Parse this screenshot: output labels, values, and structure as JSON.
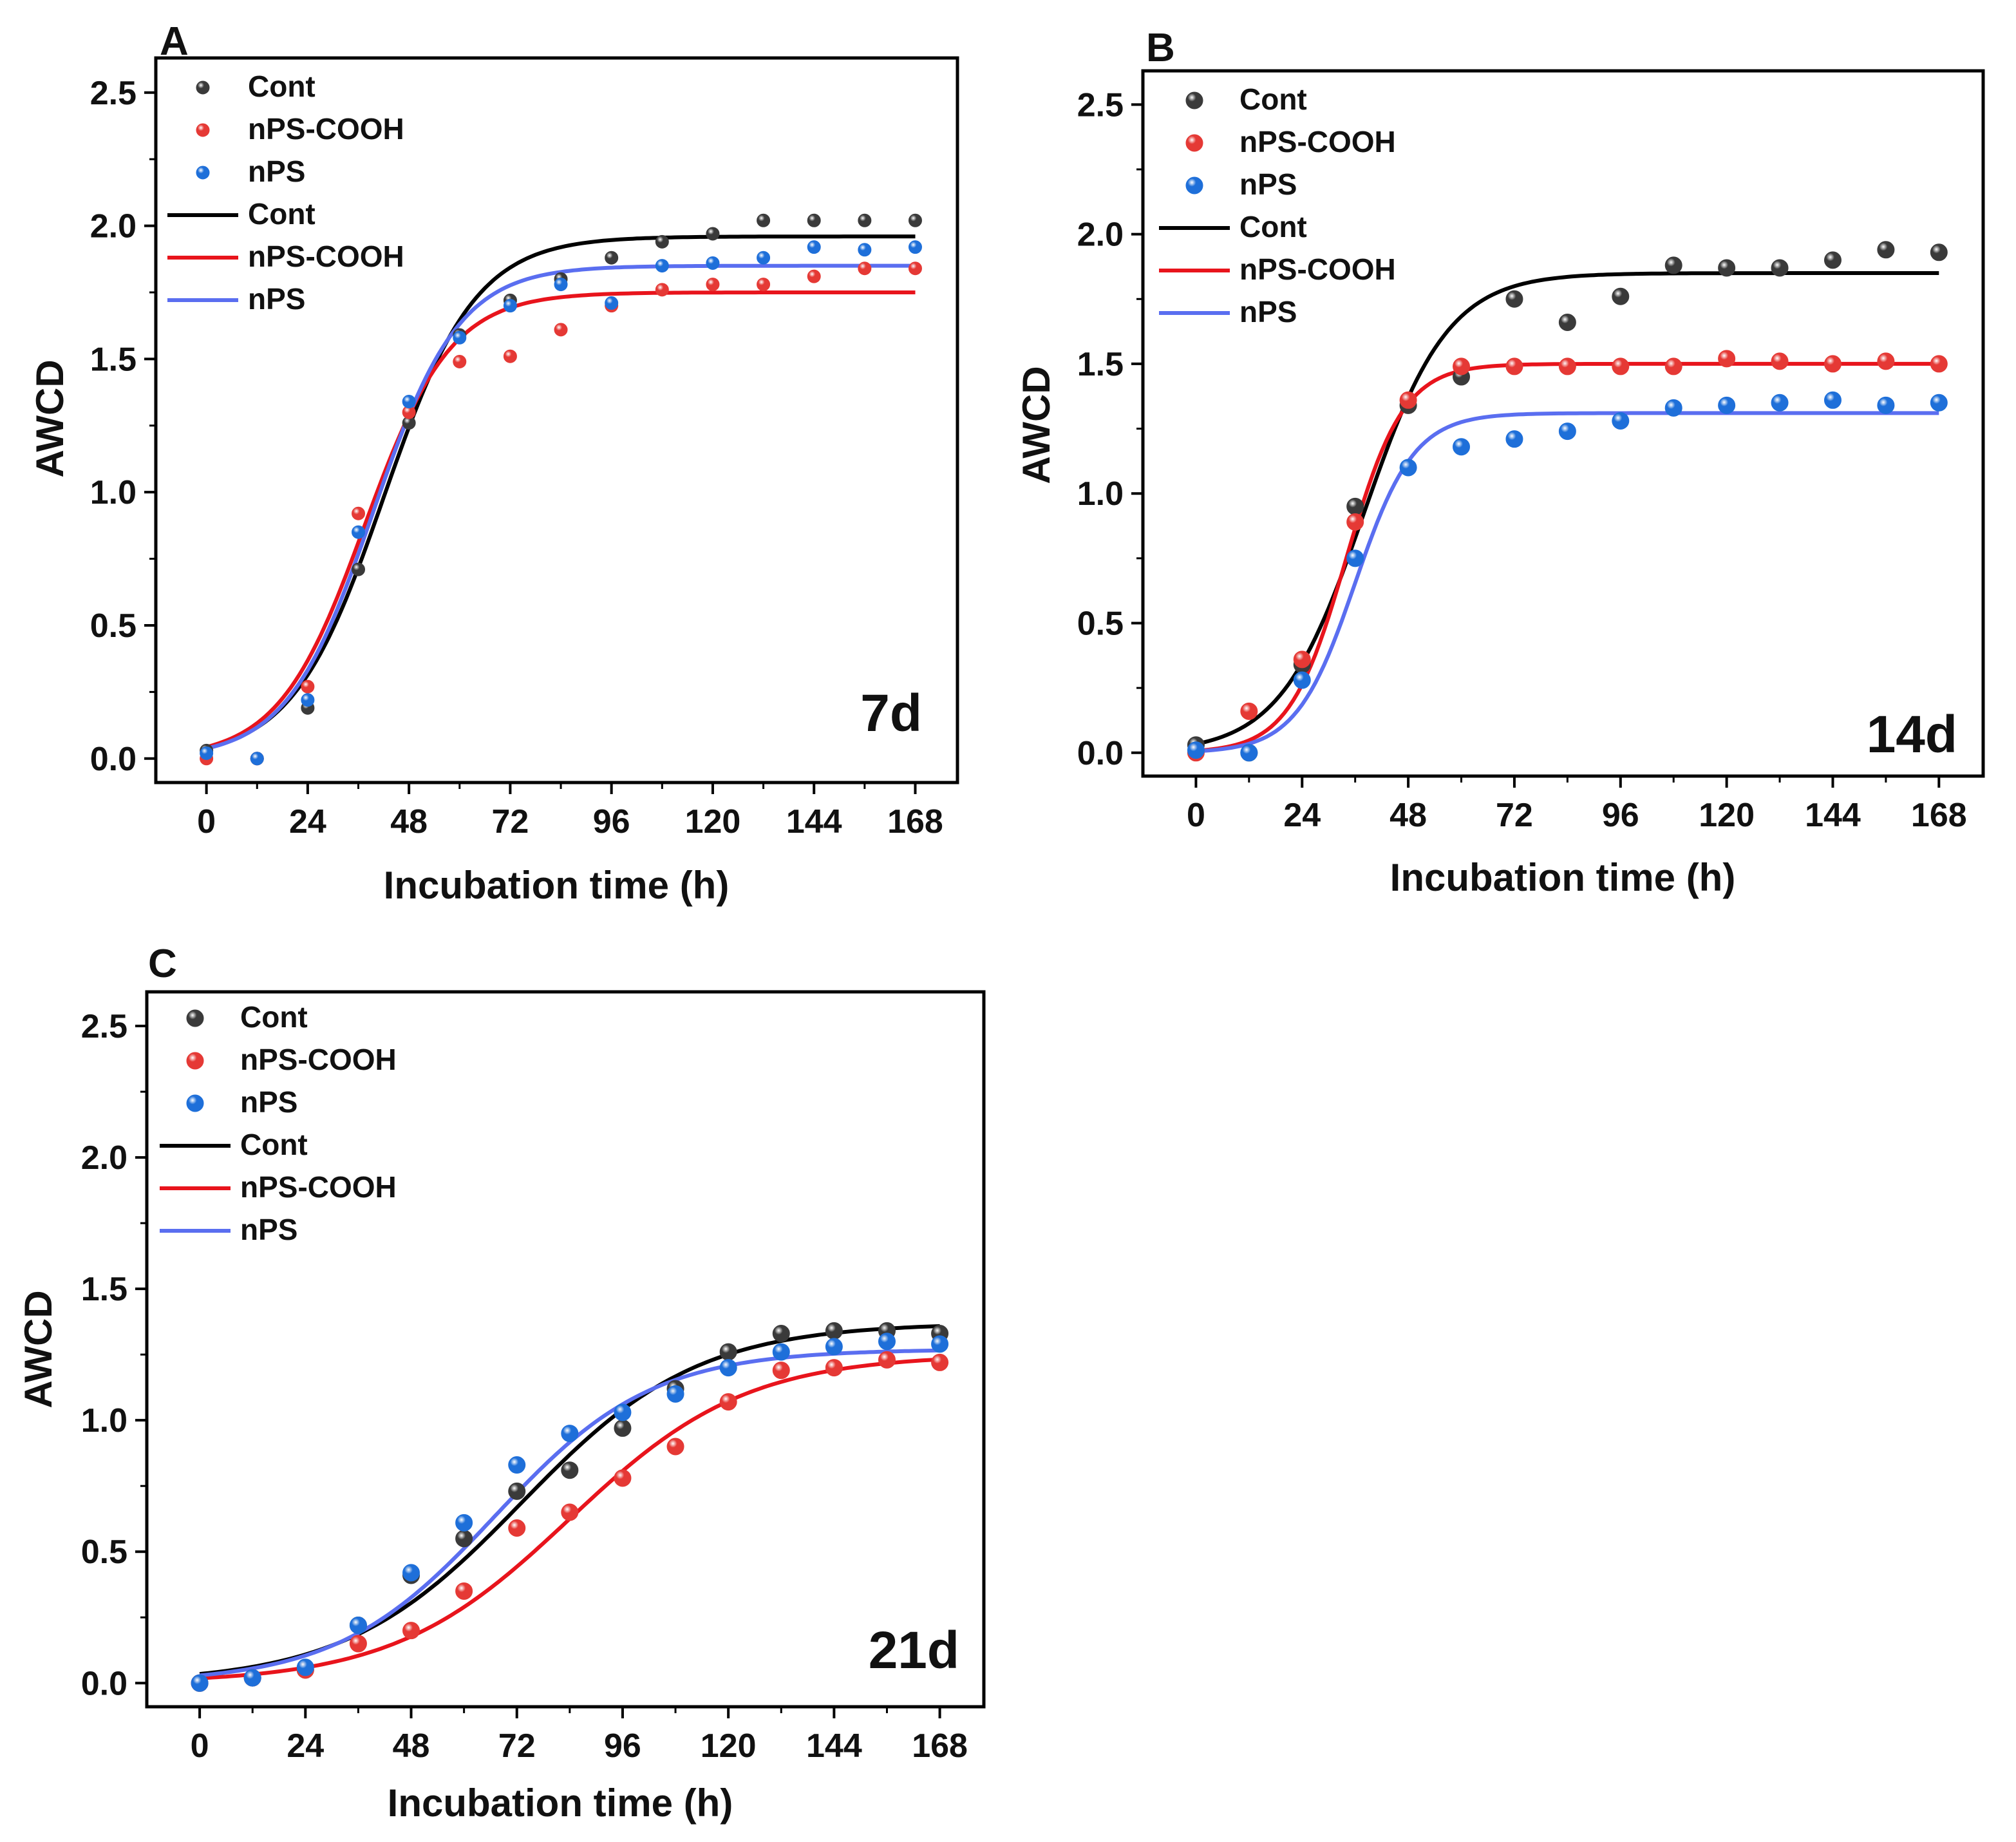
{
  "figure": {
    "panels": [
      {
        "letter": "A",
        "day_label": "7d",
        "chart_data": {
          "type": "scatter",
          "xlabel": "Incubation time (h)",
          "ylabel": "AWCD",
          "xlim": [
            -12,
            178
          ],
          "ylim": [
            -0.09,
            2.63
          ],
          "xticks": [
            0,
            24,
            48,
            72,
            96,
            120,
            144,
            168
          ],
          "yticks": [
            0.0,
            0.5,
            1.0,
            1.5,
            2.0,
            2.5
          ],
          "legend": "top-left",
          "series": [
            {
              "name": "Cont",
              "color": "#3a3a3a",
              "kind": "points",
              "x": [
                0,
                12,
                24,
                36,
                48,
                60,
                72,
                84,
                96,
                108,
                120,
                132,
                144,
                156,
                168
              ],
              "y": [
                0.03,
                0.0,
                0.19,
                0.71,
                1.26,
                1.59,
                1.72,
                1.8,
                1.88,
                1.94,
                1.97,
                2.02,
                2.02,
                2.02,
                2.02
              ]
            },
            {
              "name": "nPS-COOH",
              "color": "#e53935",
              "kind": "points",
              "x": [
                0,
                12,
                24,
                36,
                48,
                60,
                72,
                84,
                96,
                108,
                120,
                132,
                144,
                156,
                168
              ],
              "y": [
                0.0,
                0.0,
                0.27,
                0.92,
                1.3,
                1.49,
                1.51,
                1.61,
                1.7,
                1.76,
                1.78,
                1.78,
                1.81,
                1.84,
                1.84
              ]
            },
            {
              "name": "nPS",
              "color": "#1e6fd9",
              "kind": "points",
              "x": [
                0,
                12,
                24,
                36,
                48,
                60,
                72,
                84,
                96,
                108,
                120,
                132,
                144,
                156,
                168
              ],
              "y": [
                0.02,
                0.0,
                0.22,
                0.85,
                1.34,
                1.58,
                1.7,
                1.78,
                1.71,
                1.85,
                1.86,
                1.88,
                1.92,
                1.91,
                1.92
              ]
            },
            {
              "name": "Cont",
              "color": "#000000",
              "kind": "curve",
              "K": 1.96,
              "r": 0.092,
              "t0": 42,
              "x": [
                0,
                168
              ]
            },
            {
              "name": "nPS-COOH",
              "color": "#e8141c",
              "kind": "curve",
              "K": 1.75,
              "r": 0.098,
              "t0": 37.5,
              "x": [
                0,
                168
              ]
            },
            {
              "name": "nPS",
              "color": "#5a6ef0",
              "kind": "curve",
              "K": 1.85,
              "r": 0.098,
              "t0": 39.5,
              "x": [
                0,
                168
              ]
            }
          ]
        }
      },
      {
        "letter": "B",
        "day_label": "14d",
        "chart_data": {
          "type": "scatter",
          "xlabel": "Incubation time (h)",
          "ylabel": "AWCD",
          "xlim": [
            -12,
            178
          ],
          "ylim": [
            -0.09,
            2.63
          ],
          "xticks": [
            0,
            24,
            48,
            72,
            96,
            120,
            144,
            168
          ],
          "yticks": [
            0.0,
            0.5,
            1.0,
            1.5,
            2.0,
            2.5
          ],
          "legend": "top-left",
          "series": [
            {
              "name": "Cont",
              "color": "#3a3a3a",
              "kind": "points",
              "x": [
                0,
                12,
                24,
                36,
                48,
                60,
                72,
                84,
                96,
                108,
                120,
                132,
                144,
                156,
                168
              ],
              "y": [
                0.03,
                0.0,
                0.34,
                0.95,
                1.34,
                1.45,
                1.75,
                1.66,
                1.76,
                1.88,
                1.87,
                1.87,
                1.9,
                1.94,
                1.93
              ]
            },
            {
              "name": "nPS-COOH",
              "color": "#e53935",
              "kind": "points",
              "x": [
                0,
                12,
                24,
                36,
                48,
                60,
                72,
                84,
                96,
                108,
                120,
                132,
                144,
                156,
                168
              ],
              "y": [
                0.0,
                0.16,
                0.36,
                0.89,
                1.36,
                1.49,
                1.49,
                1.49,
                1.49,
                1.49,
                1.52,
                1.51,
                1.5,
                1.51,
                1.5
              ]
            },
            {
              "name": "nPS",
              "color": "#1e6fd9",
              "kind": "points",
              "x": [
                0,
                12,
                24,
                36,
                48,
                60,
                72,
                84,
                96,
                108,
                120,
                132,
                144,
                156,
                168
              ],
              "y": [
                0.01,
                0.0,
                0.28,
                0.75,
                1.1,
                1.18,
                1.21,
                1.24,
                1.28,
                1.33,
                1.34,
                1.35,
                1.36,
                1.34,
                1.35
              ]
            },
            {
              "name": "Cont",
              "color": "#000000",
              "kind": "curve",
              "K": 1.85,
              "r": 0.105,
              "t0": 38,
              "x": [
                0,
                168
              ]
            },
            {
              "name": "nPS-COOH",
              "color": "#e8141c",
              "kind": "curve",
              "K": 1.5,
              "r": 0.155,
              "t0": 34,
              "x": [
                0,
                168
              ]
            },
            {
              "name": "nPS",
              "color": "#5a6ef0",
              "kind": "curve",
              "K": 1.31,
              "r": 0.15,
              "t0": 36,
              "x": [
                0,
                168
              ]
            }
          ]
        }
      },
      {
        "letter": "C",
        "day_label": "21d",
        "chart_data": {
          "type": "scatter",
          "xlabel": "Incubation time (h)",
          "ylabel": "AWCD",
          "xlim": [
            -12,
            178
          ],
          "ylim": [
            -0.09,
            2.63
          ],
          "xticks": [
            0,
            24,
            48,
            72,
            96,
            120,
            144,
            168
          ],
          "yticks": [
            0.0,
            0.5,
            1.0,
            1.5,
            2.0,
            2.5
          ],
          "legend": "top-left",
          "series": [
            {
              "name": "Cont",
              "color": "#3a3a3a",
              "kind": "points",
              "x": [
                0,
                12,
                24,
                36,
                48,
                60,
                72,
                84,
                96,
                108,
                120,
                132,
                144,
                156,
                168
              ],
              "y": [
                0.0,
                0.02,
                0.05,
                0.22,
                0.41,
                0.55,
                0.73,
                0.81,
                0.97,
                1.12,
                1.26,
                1.33,
                1.34,
                1.34,
                1.33
              ]
            },
            {
              "name": "nPS-COOH",
              "color": "#e53935",
              "kind": "points",
              "x": [
                0,
                12,
                24,
                36,
                48,
                60,
                72,
                84,
                96,
                108,
                120,
                132,
                144,
                156,
                168
              ],
              "y": [
                0.0,
                0.02,
                0.05,
                0.15,
                0.2,
                0.35,
                0.59,
                0.65,
                0.78,
                0.9,
                1.07,
                1.19,
                1.2,
                1.23,
                1.22
              ]
            },
            {
              "name": "nPS",
              "color": "#1e6fd9",
              "kind": "points",
              "x": [
                0,
                12,
                24,
                36,
                48,
                60,
                72,
                84,
                96,
                108,
                120,
                132,
                144,
                156,
                168
              ],
              "y": [
                0.0,
                0.02,
                0.06,
                0.22,
                0.42,
                0.61,
                0.83,
                0.95,
                1.03,
                1.1,
                1.2,
                1.26,
                1.28,
                1.3,
                1.29
              ]
            },
            {
              "name": "Cont",
              "color": "#000000",
              "kind": "curve",
              "K": 1.37,
              "r": 0.05,
              "t0": 73,
              "x": [
                0,
                168
              ]
            },
            {
              "name": "nPS-COOH",
              "color": "#e8141c",
              "kind": "curve",
              "K": 1.25,
              "r": 0.05,
              "t0": 84,
              "x": [
                0,
                168
              ]
            },
            {
              "name": "nPS",
              "color": "#5a6ef0",
              "kind": "curve",
              "K": 1.27,
              "r": 0.056,
              "t0": 67,
              "x": [
                0,
                168
              ]
            }
          ]
        }
      }
    ]
  }
}
